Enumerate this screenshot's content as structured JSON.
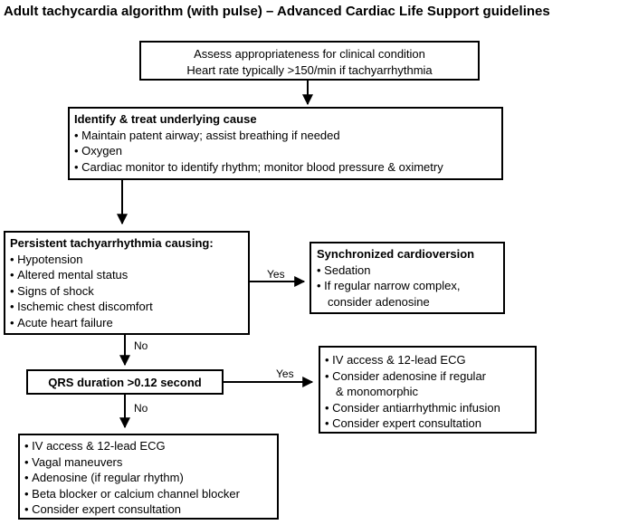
{
  "title": "Adult tachycardia algorithm (with pulse) – Advanced Cardiac Life Support guidelines",
  "assess": {
    "line1": "Assess appropriateness for clinical condition",
    "line2": "Heart rate typically >150/min if tachyarrhythmia"
  },
  "identify": {
    "heading": "Identify & treat underlying cause",
    "items": [
      "Maintain patent airway; assist breathing if needed",
      "Oxygen",
      "Cardiac monitor to identify rhythm; monitor blood pressure & oximetry"
    ]
  },
  "persistent": {
    "heading": "Persistent tachyarrhythmia causing:",
    "items": [
      "Hypotension",
      "Altered mental status",
      "Signs of shock",
      "Ischemic chest discomfort",
      "Acute heart failure"
    ]
  },
  "cardioversion": {
    "heading": "Synchronized cardioversion",
    "item1": "Sedation",
    "item2": "If regular narrow complex,",
    "item2_cont": "consider adenosine"
  },
  "qrs": {
    "label": "QRS duration >0.12 second"
  },
  "wide": {
    "item1": "IV access & 12-lead ECG",
    "item2": "Consider adenosine if regular",
    "item2_cont": "& monomorphic",
    "item3": "Consider antiarrhythmic infusion",
    "item4": "Consider expert consultation"
  },
  "narrow": {
    "items": [
      "IV access & 12-lead ECG",
      "Vagal maneuvers",
      "Adenosine (if regular rhythm)",
      "Beta blocker or calcium channel blocker",
      "Consider expert consultation"
    ]
  },
  "labels": {
    "yes": "Yes",
    "no": "No"
  }
}
